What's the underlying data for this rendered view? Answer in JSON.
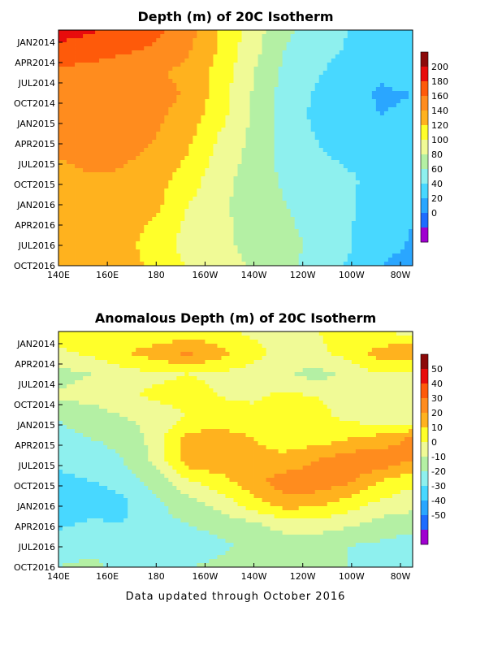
{
  "chart_data": [
    {
      "type": "heatmap",
      "title": "Depth (m) of 20C Isotherm",
      "x_ticks": [
        "140E",
        "160E",
        "180",
        "160W",
        "140W",
        "120W",
        "100W",
        "80W"
      ],
      "y_ticks": [
        "JAN2014",
        "APR2014",
        "JUL2014",
        "OCT2014",
        "JAN2015",
        "APR2015",
        "JUL2015",
        "OCT2015",
        "JAN2016",
        "APR2016",
        "JUL2016",
        "OCT2016"
      ],
      "colorbar_labels": [
        "200",
        "180",
        "160",
        "140",
        "120",
        "100",
        "80",
        "60",
        "40",
        "20",
        "0"
      ],
      "levels": [
        -10,
        0,
        20,
        40,
        60,
        80,
        100,
        120,
        140,
        160,
        180,
        200,
        220
      ],
      "colors": [
        "#a000d0",
        "#1e6cff",
        "#2aa6ff",
        "#48d8ff",
        "#8ef0ee",
        "#b4f0a4",
        "#f0fa96",
        "#ffff2a",
        "#ffb21e",
        "#ff8c1e",
        "#fe5a0a",
        "#e80c0c",
        "#8c0a0a"
      ],
      "grid": [
        [
          205,
          202,
          196,
          185,
          170,
          140,
          110,
          85,
          70,
          60,
          52,
          55
        ],
        [
          196,
          192,
          182,
          176,
          162,
          138,
          108,
          80,
          66,
          58,
          48,
          52
        ],
        [
          172,
          170,
          164,
          164,
          154,
          132,
          102,
          76,
          62,
          52,
          42,
          46
        ],
        [
          166,
          168,
          176,
          168,
          158,
          130,
          100,
          72,
          58,
          46,
          38,
          40
        ],
        [
          172,
          166,
          170,
          164,
          152,
          128,
          98,
          70,
          56,
          46,
          40,
          42
        ],
        [
          168,
          162,
          166,
          160,
          146,
          118,
          96,
          72,
          60,
          52,
          44,
          42
        ],
        [
          160,
          164,
          162,
          156,
          138,
          112,
          94,
          74,
          62,
          58,
          54,
          46
        ],
        [
          154,
          158,
          158,
          148,
          130,
          108,
          90,
          78,
          68,
          62,
          56,
          44
        ],
        [
          156,
          154,
          152,
          146,
          122,
          104,
          92,
          80,
          70,
          62,
          52,
          42
        ],
        [
          156,
          154,
          148,
          138,
          116,
          104,
          94,
          84,
          72,
          62,
          50,
          40
        ],
        [
          154,
          152,
          146,
          132,
          112,
          104,
          96,
          86,
          76,
          62,
          48,
          38
        ],
        [
          156,
          152,
          148,
          136,
          118,
          108,
          98,
          86,
          72,
          58,
          40,
          32
        ]
      ]
    },
    {
      "type": "heatmap",
      "title": "Anomalous Depth (m) of 20C Isotherm",
      "x_ticks": [
        "140E",
        "160E",
        "180",
        "160W",
        "140W",
        "120W",
        "100W",
        "80W"
      ],
      "y_ticks": [
        "JAN2014",
        "APR2014",
        "JUL2014",
        "OCT2014",
        "JAN2015",
        "APR2015",
        "JUL2015",
        "OCT2015",
        "JAN2016",
        "APR2016",
        "JUL2016",
        "OCT2016"
      ],
      "colorbar_labels": [
        "50",
        "40",
        "30",
        "20",
        "10",
        "0",
        "-10",
        "-20",
        "-30",
        "-40",
        "-50"
      ],
      "levels": [
        -60,
        -50,
        -40,
        -30,
        -20,
        -10,
        0,
        10,
        20,
        30,
        40,
        50,
        60
      ],
      "colors": [
        "#a000d0",
        "#1e6cff",
        "#2aa6ff",
        "#48d8ff",
        "#8ef0ee",
        "#b4f0a4",
        "#f0fa96",
        "#ffff2a",
        "#ffb21e",
        "#ff8c1e",
        "#fe5a0a",
        "#e80c0c",
        "#8c0a0a"
      ],
      "grid": [
        [
          14,
          16,
          12,
          10,
          14,
          12,
          8,
          6,
          10,
          12,
          10,
          6
        ],
        [
          8,
          12,
          18,
          26,
          32,
          24,
          14,
          6,
          8,
          14,
          24,
          30
        ],
        [
          -4,
          0,
          6,
          8,
          10,
          8,
          6,
          2,
          -4,
          2,
          10,
          6
        ],
        [
          2,
          4,
          8,
          12,
          14,
          10,
          8,
          12,
          10,
          8,
          8,
          10
        ],
        [
          -10,
          -6,
          0,
          4,
          10,
          12,
          14,
          16,
          12,
          8,
          2,
          0
        ],
        [
          -12,
          -10,
          -8,
          4,
          24,
          26,
          20,
          16,
          14,
          20,
          24,
          32
        ],
        [
          -16,
          -14,
          -10,
          2,
          26,
          28,
          24,
          22,
          30,
          36,
          38,
          30
        ],
        [
          -24,
          -20,
          -16,
          -6,
          8,
          16,
          26,
          36,
          36,
          32,
          20,
          12
        ],
        [
          -30,
          -28,
          -22,
          -12,
          -4,
          4,
          16,
          26,
          24,
          16,
          8,
          4
        ],
        [
          -22,
          -18,
          -20,
          -14,
          -10,
          -6,
          -2,
          4,
          6,
          2,
          -4,
          -6
        ],
        [
          -14,
          -12,
          -16,
          -20,
          -18,
          -12,
          -8,
          -6,
          -8,
          -10,
          -12,
          -16
        ],
        [
          -10,
          -8,
          -12,
          -14,
          -10,
          -8,
          -4,
          -2,
          -6,
          -10,
          -14,
          -12
        ]
      ]
    }
  ],
  "footer": {
    "text": "Data updated through October 2016"
  }
}
